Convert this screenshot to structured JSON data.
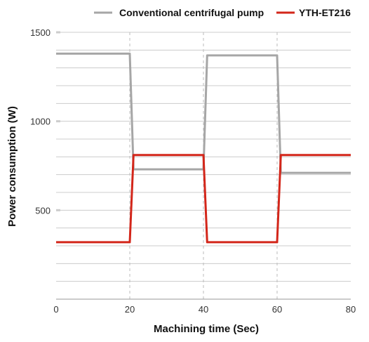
{
  "chart_data": {
    "type": "line",
    "title": "",
    "xlabel": "Machining time (Sec)",
    "ylabel": "Power consumption (W)",
    "xlim": [
      0,
      80
    ],
    "ylim": [
      0,
      1500
    ],
    "x_ticks": [
      0,
      20,
      40,
      60,
      80
    ],
    "y_ticks": [
      500,
      1000,
      1500
    ],
    "x_tick_labels": [
      "0",
      "20",
      "40",
      "60",
      "80"
    ],
    "y_tick_labels": [
      "500",
      "1000",
      "1500"
    ],
    "grid": true,
    "legend_position": "top-right",
    "series": [
      {
        "name": "Conventional centrifugal pump",
        "color": "#a6a6a6",
        "x": [
          0,
          20,
          21,
          40,
          41,
          60,
          61,
          80
        ],
        "y": [
          1380,
          1380,
          730,
          730,
          1370,
          1370,
          710,
          710
        ]
      },
      {
        "name": "YTH-ET216",
        "color": "#d3261a",
        "x": [
          0,
          20,
          21,
          40,
          41,
          60,
          61,
          80
        ],
        "y": [
          320,
          320,
          810,
          810,
          320,
          320,
          810,
          810
        ]
      }
    ]
  }
}
